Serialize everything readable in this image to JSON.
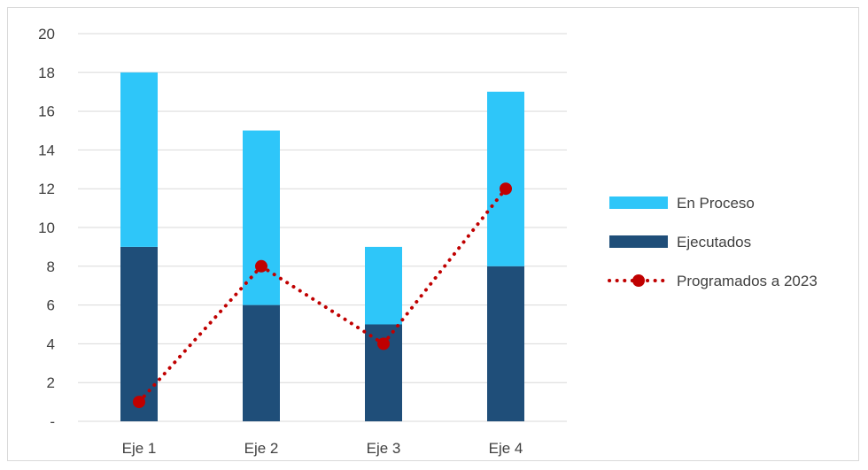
{
  "chart_data": {
    "type": "bar",
    "stacked": true,
    "categories": [
      "Eje 1",
      "Eje 2",
      "Eje 3",
      "Eje 4"
    ],
    "series": [
      {
        "name": "Ejecutados",
        "type": "bar",
        "color": "#1f4e79",
        "values": [
          9,
          6,
          5,
          8
        ]
      },
      {
        "name": "En Proceso",
        "type": "bar",
        "color": "#2ec6f9",
        "values": [
          9,
          9,
          4,
          9
        ]
      },
      {
        "name": "Programados a 2023",
        "type": "line",
        "line_style": "dotted",
        "marker": "circle",
        "color": "#c00000",
        "values": [
          1,
          8,
          4,
          12
        ]
      }
    ],
    "y_ticks": [
      "-",
      "2",
      "4",
      "6",
      "8",
      "10",
      "12",
      "14",
      "16",
      "18",
      "20"
    ],
    "ylim": [
      0,
      20
    ],
    "grid": true,
    "legend": {
      "position": "right",
      "order": [
        "En Proceso",
        "Ejecutados",
        "Programados a 2023"
      ]
    }
  }
}
